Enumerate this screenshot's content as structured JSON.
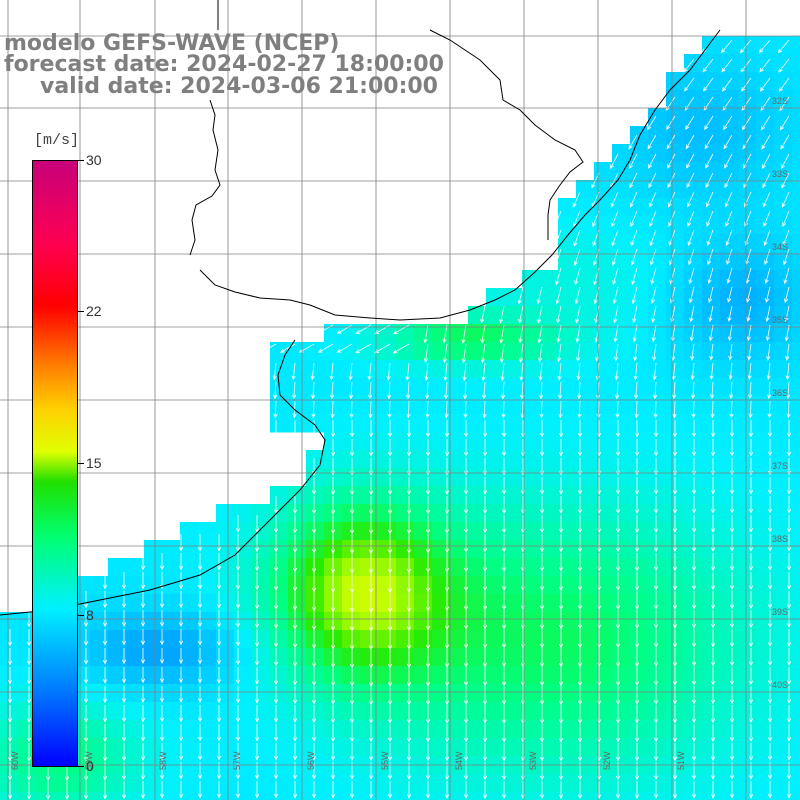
{
  "title": {
    "model": "modelo GEFS-WAVE (NCEP)",
    "forecast": "forecast date: 2024-02-27 18:00:00",
    "valid": "valid date: 2024-03-06 21:00:00"
  },
  "colorbar": {
    "unit": "[m/s]",
    "labels": [
      "30",
      "22",
      "15",
      "8",
      "0"
    ],
    "values": [
      30,
      22,
      15,
      8,
      0
    ],
    "min": 0,
    "max": 30
  },
  "lat_labels": [
    "32S",
    "33S",
    "34S",
    "35S",
    "36S",
    "37S",
    "38S",
    "39S",
    "40S"
  ],
  "lon_labels": [
    "60W",
    "59W",
    "58W",
    "57W",
    "56W",
    "55W",
    "54W",
    "53W",
    "52W",
    "51W"
  ],
  "colors": {
    "land": "#ffffff",
    "grid": "#808080",
    "coast": "#000000",
    "arrow": "#ffffff",
    "title": "#7f7f7f"
  }
}
